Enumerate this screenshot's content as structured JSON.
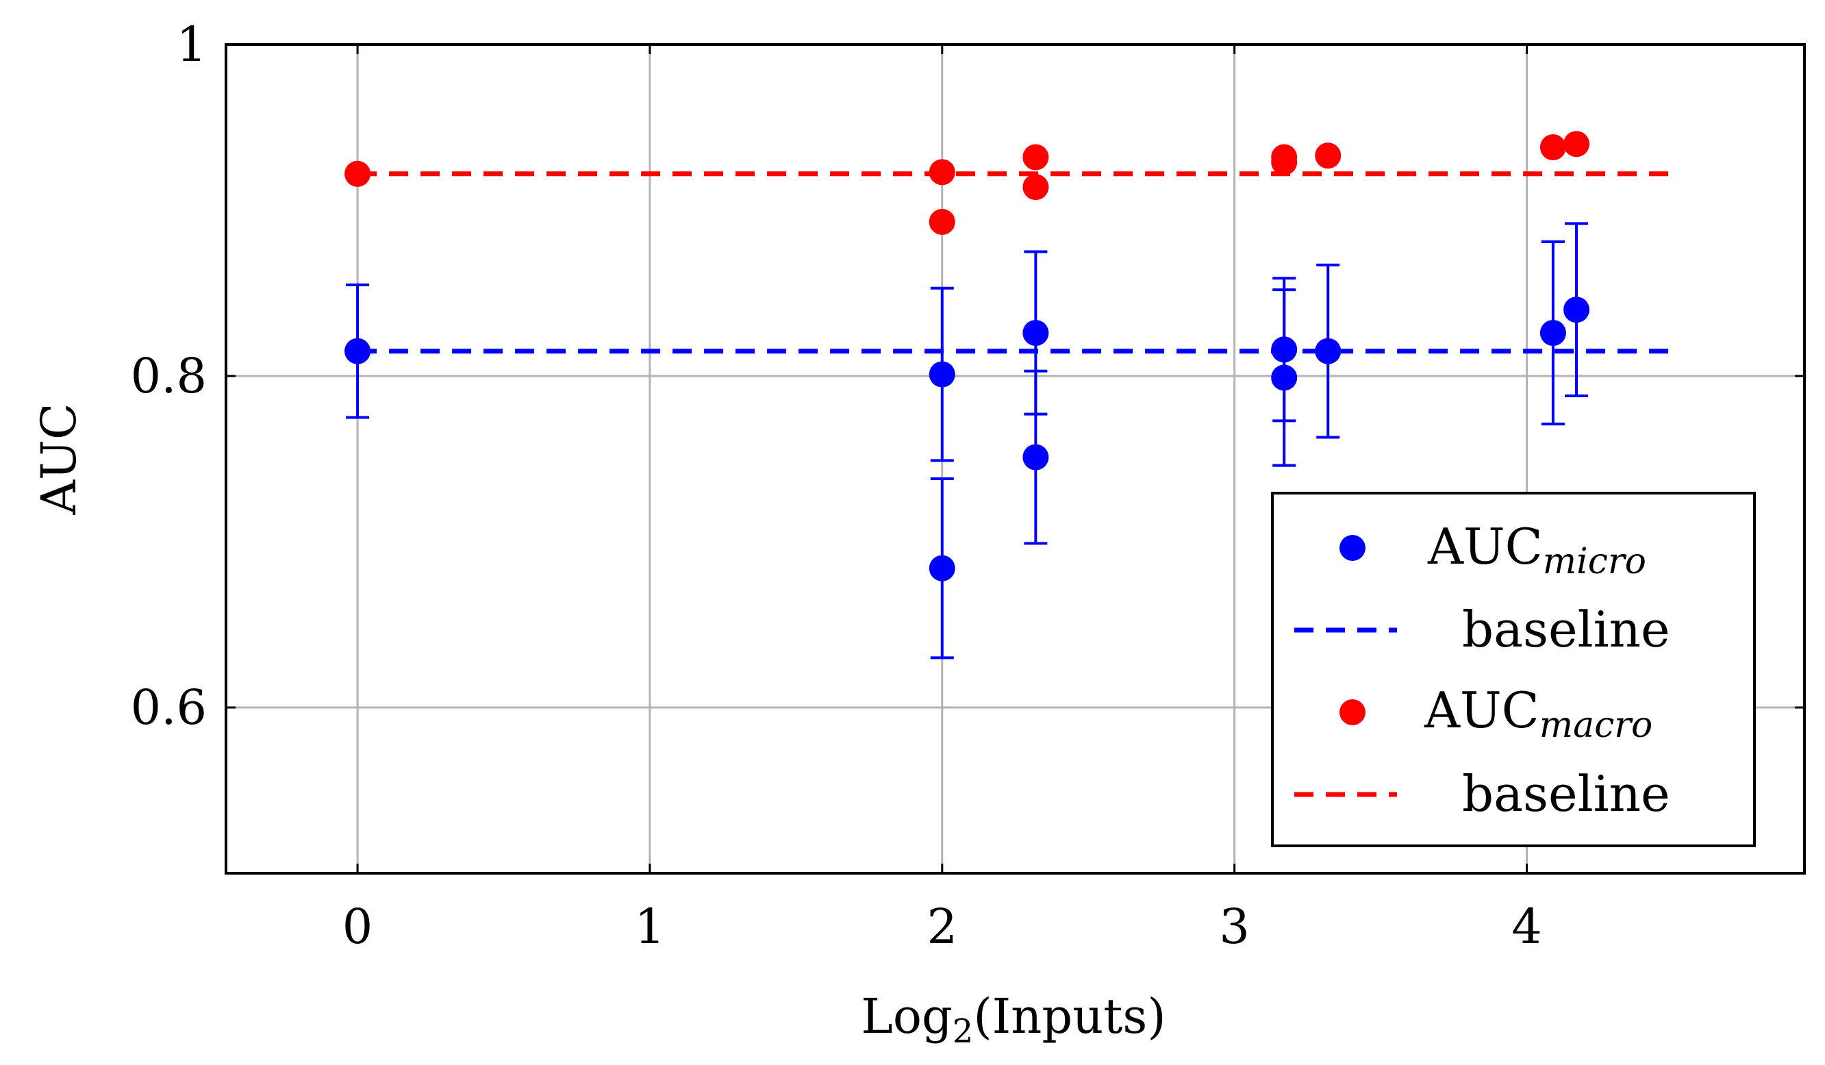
{
  "chart_data": {
    "type": "scatter",
    "title": "",
    "xlabel": "Log",
    "xlabel_sub": "2",
    "xlabel_suffix": "(Inputs)",
    "ylabel": "AUC",
    "xlim": [
      -0.45,
      4.95
    ],
    "ylim": [
      0.5,
      1.0
    ],
    "xticks": [
      0,
      1,
      2,
      3,
      4
    ],
    "xtick_labels": [
      "0",
      "1",
      "2",
      "3",
      "4"
    ],
    "yticks": [
      0.6,
      0.8,
      1.0
    ],
    "ytick_labels": [
      "0.6",
      "0.8",
      "1"
    ],
    "grid": true,
    "legend_position": "bottom-right",
    "series": [
      {
        "name": "AUC",
        "name_sub": "micro",
        "kind": "points",
        "color": "#0000ff",
        "points": [
          {
            "x": 0,
            "y": 0.815,
            "err": 0.04
          },
          {
            "x": 2,
            "y": 0.801,
            "err": 0.052
          },
          {
            "x": 2,
            "y": 0.684,
            "err": 0.054
          },
          {
            "x": 2.32,
            "y": 0.826,
            "err": 0.049
          },
          {
            "x": 2.32,
            "y": 0.751,
            "err": 0.052
          },
          {
            "x": 3.17,
            "y": 0.816,
            "err": 0.043
          },
          {
            "x": 3.17,
            "y": 0.799,
            "err": 0.053
          },
          {
            "x": 3.32,
            "y": 0.815,
            "err": 0.052
          },
          {
            "x": 4.09,
            "y": 0.826,
            "err": 0.055
          },
          {
            "x": 4.17,
            "y": 0.84,
            "err": 0.052
          }
        ]
      },
      {
        "name": "baseline",
        "kind": "dashed-line",
        "color": "#0000ff",
        "x": [
          0,
          4.5
        ],
        "y": [
          0.815,
          0.815
        ]
      },
      {
        "name": "AUC",
        "name_sub": "macro",
        "kind": "points",
        "color": "#ff0000",
        "points": [
          {
            "x": 0,
            "y": 0.922,
            "err": 0
          },
          {
            "x": 2,
            "y": 0.923,
            "err": 0
          },
          {
            "x": 2,
            "y": 0.893,
            "err": 0.003
          },
          {
            "x": 2.32,
            "y": 0.932,
            "err": 0
          },
          {
            "x": 2.32,
            "y": 0.914,
            "err": 0
          },
          {
            "x": 3.17,
            "y": 0.932,
            "err": 0
          },
          {
            "x": 3.17,
            "y": 0.929,
            "err": 0
          },
          {
            "x": 3.32,
            "y": 0.933,
            "err": 0
          },
          {
            "x": 4.09,
            "y": 0.938,
            "err": 0
          },
          {
            "x": 4.17,
            "y": 0.94,
            "err": 0
          }
        ]
      },
      {
        "name": "baseline",
        "kind": "dashed-line",
        "color": "#ff0000",
        "x": [
          0,
          4.5
        ],
        "y": [
          0.922,
          0.922
        ]
      }
    ]
  }
}
